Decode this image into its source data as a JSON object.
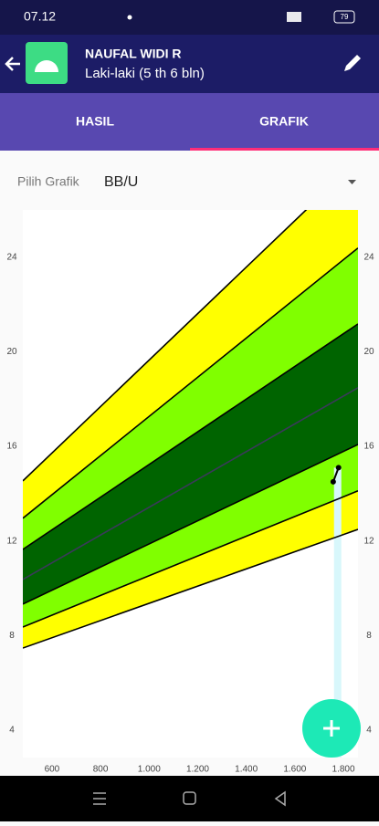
{
  "status_bar": {
    "time": "07.12",
    "battery": "79"
  },
  "app_bar": {
    "name": "NAUFAL WIDI R",
    "subtitle": "Laki-laki (5 th 6 bln)"
  },
  "tabs": [
    "HASIL",
    "GRAFIK"
  ],
  "selector": {
    "label": "Pilih Grafik",
    "value": "BB/U"
  },
  "chart_data": {
    "type": "line",
    "xlim": [
      480,
      1860
    ],
    "ylim": [
      2.84,
      26
    ],
    "y2lim": [
      2.84,
      26
    ],
    "xticks": [
      600,
      800,
      {
        "value": 1000,
        "label": "1.000"
      },
      {
        "value": 1200,
        "label": "1.200"
      },
      {
        "value": 1400,
        "label": "1.400"
      },
      {
        "value": 1600,
        "label": "1.600"
      },
      {
        "value": 1800,
        "label": "1.800"
      }
    ],
    "yticks": [
      4,
      8,
      12,
      16,
      20,
      24
    ],
    "y2ticks": [
      4,
      8,
      12,
      16,
      20,
      24
    ],
    "series": [
      {
        "color": "#000000",
        "fill": "#ffff00",
        "x": [
          480,
          1860
        ],
        "values": [
          14.54,
          28.1
        ]
      },
      {
        "color": "#000000",
        "fill": "#80ff00",
        "x": [
          480,
          1860
        ],
        "values": [
          12.96,
          24.39
        ]
      },
      {
        "color": "#000000",
        "fill": "#006400",
        "x": [
          480,
          1860
        ],
        "values": [
          11.64,
          21.18
        ]
      },
      {
        "color": "#3a3a5a",
        "fill": "#006400",
        "x": [
          480,
          1860
        ],
        "values": [
          10.37,
          18.48
        ]
      },
      {
        "color": "#000000",
        "fill": "#80ff00",
        "x": [
          480,
          1860
        ],
        "values": [
          9.33,
          16.08
        ]
      },
      {
        "color": "#000000",
        "fill": "#ffff00",
        "x": [
          480,
          1860
        ],
        "values": [
          8.36,
          14.12
        ]
      },
      {
        "color": "#000000",
        "x": [
          480,
          1860
        ],
        "values": [
          7.47,
          12.49
        ]
      },
      {
        "color": "#000000",
        "marker": true,
        "x": [
          1758,
          1780
        ],
        "values": [
          14.5,
          15.1
        ]
      }
    ]
  }
}
